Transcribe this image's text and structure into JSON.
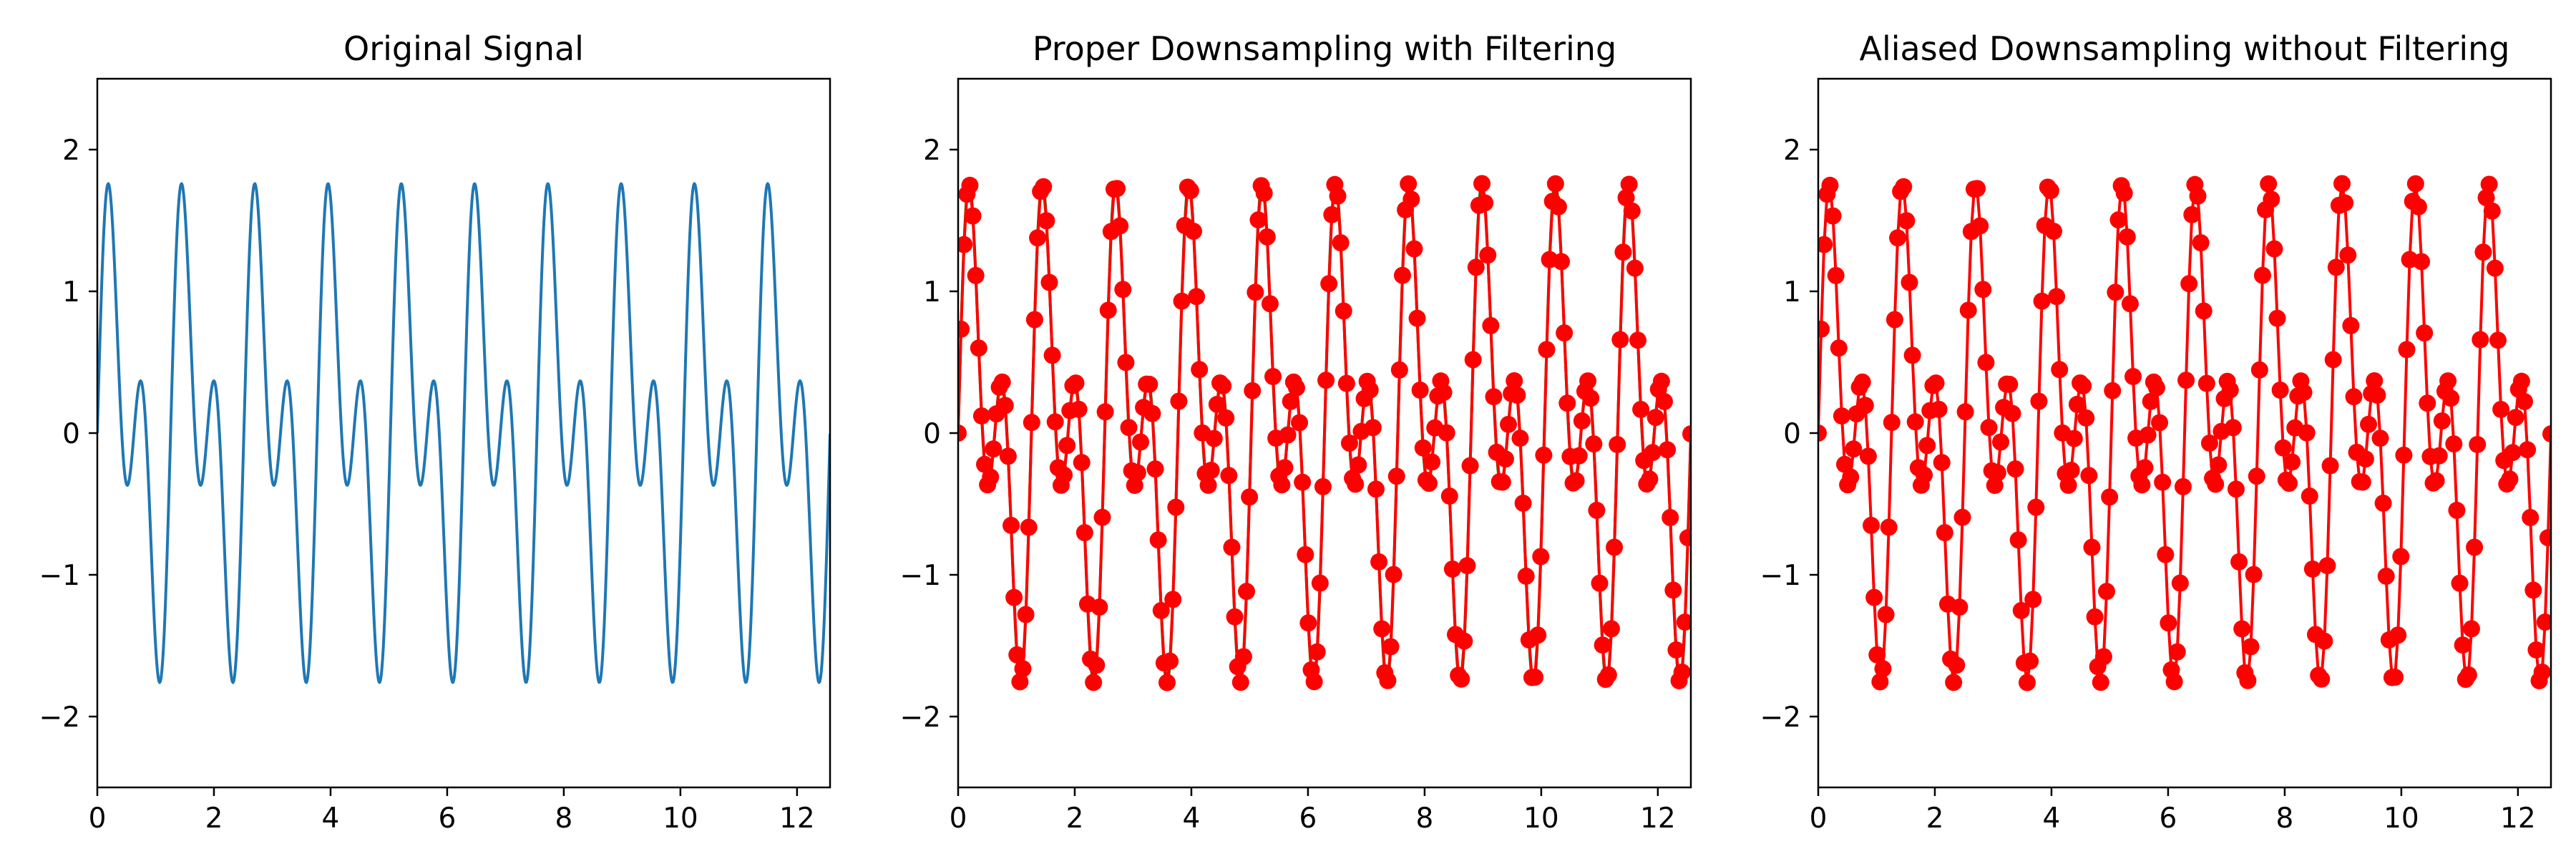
{
  "colors": {
    "original": "#1f77b4",
    "filtered": "#ff0000",
    "filtered_underlay": "#008000",
    "aliased": "#ff0000"
  },
  "chart_data": [
    {
      "type": "line",
      "title": "Original Signal",
      "xlabel": "",
      "ylabel": "",
      "xlim": [
        0,
        12.566
      ],
      "ylim": [
        -2.5,
        2.5
      ],
      "xticks": [
        0,
        2,
        4,
        6,
        8,
        10,
        12
      ],
      "yticks": [
        -2,
        -1,
        0,
        1,
        2
      ],
      "xtick_labels": [
        "0",
        "2",
        "4",
        "6",
        "8",
        "10",
        "12"
      ],
      "ytick_labels": [
        "−2",
        "−1",
        "0",
        "1",
        "2"
      ],
      "series": [
        {
          "formula": "sin(5x) + sin(10x)",
          "x_range": [
            0,
            12.566
          ],
          "samples": 1000,
          "color": "#1f77b4",
          "marker": "none"
        }
      ]
    },
    {
      "type": "line",
      "title": "Proper Downsampling with Filtering",
      "xlabel": "",
      "ylabel": "",
      "xlim": [
        0,
        12.566
      ],
      "ylim": [
        -2.5,
        2.5
      ],
      "xticks": [
        0,
        2,
        4,
        6,
        8,
        10,
        12
      ],
      "yticks": [
        -2,
        -1,
        0,
        1,
        2
      ],
      "xtick_labels": [
        "0",
        "2",
        "4",
        "6",
        "8",
        "10",
        "12"
      ],
      "ytick_labels": [
        "−2",
        "−1",
        "0",
        "1",
        "2"
      ],
      "series": [
        {
          "formula": "sin(5x) + sin(10x)",
          "x_range": [
            0,
            12.566
          ],
          "samples": 1000,
          "color": "#008000",
          "marker": "none"
        },
        {
          "formula": "sin(5x) + sin(10x)",
          "x_range": [
            0,
            12.566
          ],
          "samples": 250,
          "color": "#ff0000",
          "marker": "circle"
        }
      ]
    },
    {
      "type": "line",
      "title": "Aliased Downsampling without Filtering",
      "xlabel": "",
      "ylabel": "",
      "xlim": [
        0,
        12.566
      ],
      "ylim": [
        -2.5,
        2.5
      ],
      "xticks": [
        0,
        2,
        4,
        6,
        8,
        10,
        12
      ],
      "yticks": [
        -2,
        -1,
        0,
        1,
        2
      ],
      "xtick_labels": [
        "0",
        "2",
        "4",
        "6",
        "8",
        "10",
        "12"
      ],
      "ytick_labels": [
        "−2",
        "−1",
        "0",
        "1",
        "2"
      ],
      "series": [
        {
          "formula": "sin(5x) + sin(10x)",
          "x_range": [
            0,
            12.566
          ],
          "samples": 250,
          "color": "#ff0000",
          "marker": "circle"
        }
      ]
    }
  ]
}
